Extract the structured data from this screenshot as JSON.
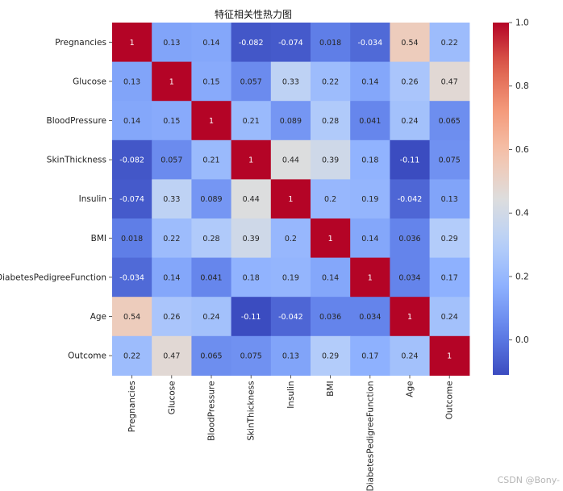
{
  "chart_data": {
    "type": "heatmap",
    "title": "特征相关性热力图",
    "labels": [
      "Pregnancies",
      "Glucose",
      "BloodPressure",
      "SkinThickness",
      "Insulin",
      "BMI",
      "DiabetesPedigreeFunction",
      "Age",
      "Outcome"
    ],
    "matrix": [
      [
        1,
        0.13,
        0.14,
        -0.082,
        -0.074,
        0.018,
        -0.034,
        0.54,
        0.22
      ],
      [
        0.13,
        1,
        0.15,
        0.057,
        0.33,
        0.22,
        0.14,
        0.26,
        0.47
      ],
      [
        0.14,
        0.15,
        1,
        0.21,
        0.089,
        0.28,
        0.041,
        0.24,
        0.065
      ],
      [
        -0.082,
        0.057,
        0.21,
        1,
        0.44,
        0.39,
        0.18,
        -0.11,
        0.075
      ],
      [
        -0.074,
        0.33,
        0.089,
        0.44,
        1,
        0.2,
        0.19,
        -0.042,
        0.13
      ],
      [
        0.018,
        0.22,
        0.28,
        0.39,
        0.2,
        1,
        0.14,
        0.036,
        0.29
      ],
      [
        -0.034,
        0.14,
        0.041,
        0.18,
        0.19,
        0.14,
        1,
        0.034,
        0.17
      ],
      [
        0.54,
        0.26,
        0.24,
        -0.11,
        -0.042,
        0.036,
        0.034,
        1,
        0.24
      ],
      [
        0.22,
        0.47,
        0.065,
        0.075,
        0.13,
        0.29,
        0.17,
        0.24,
        1
      ]
    ],
    "colormap": "coolwarm",
    "vmin": -0.11,
    "vmax": 1.0,
    "colorbar_ticks": [
      0.0,
      0.2,
      0.4,
      0.6,
      0.8,
      1.0
    ],
    "colorbar_tick_labels": [
      "0.0",
      "0.2",
      "0.4",
      "0.6",
      "0.8",
      "1.0"
    ],
    "annotate": true
  },
  "watermark": "CSDN @Bony-"
}
